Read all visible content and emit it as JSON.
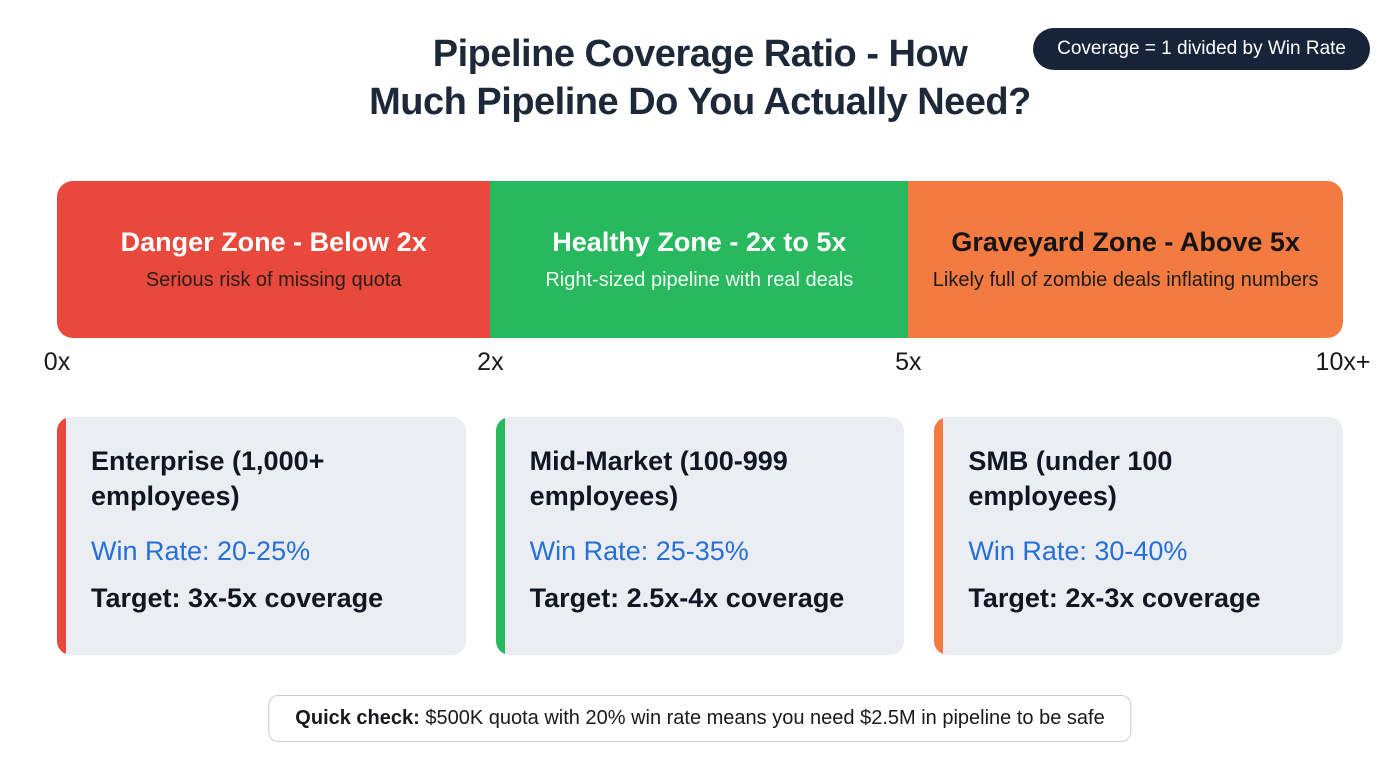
{
  "colors": {
    "title": "#1d2939",
    "badge_bg": "#162338",
    "win_rate_blue": "#2470d6"
  },
  "header": {
    "title_line1": "Pipeline Coverage Ratio - How",
    "title_line2": "Much Pipeline Do You Actually Need?",
    "formula_badge": "Coverage = 1 divided by Win Rate"
  },
  "zones": [
    {
      "title": "Danger Zone - Below 2x",
      "subtitle": "Serious risk of missing quota",
      "color": "#e8493c",
      "title_color": "#ffffff",
      "subtitle_color": "#2a1d1a"
    },
    {
      "title": "Healthy Zone - 2x to 5x",
      "subtitle": "Right-sized pipeline with real deals",
      "color": "#28b95f",
      "title_color": "#ffffff",
      "subtitle_color": "#eefcf3"
    },
    {
      "title": "Graveyard Zone - Above 5x",
      "subtitle": "Likely full of zombie deals inflating numbers",
      "color": "#f37a41",
      "title_color": "#141414",
      "subtitle_color": "#1c1c1c"
    }
  ],
  "axis_labels": [
    "0x",
    "2x",
    "5x",
    "10x+"
  ],
  "cards": [
    {
      "title": "Enterprise (1,000+ employees)",
      "win_rate": "Win Rate: 20-25%",
      "target": "Target: 3x-5x coverage",
      "accent": "#e8493c"
    },
    {
      "title": "Mid-Market (100-999 employees)",
      "win_rate": "Win Rate: 25-35%",
      "target": "Target: 2.5x-4x coverage",
      "accent": "#28b95f"
    },
    {
      "title": "SMB (under 100 employees)",
      "win_rate": "Win Rate: 30-40%",
      "target": "Target: 2x-3x coverage",
      "accent": "#f37a41"
    }
  ],
  "footer": {
    "quick_check_label": "Quick check:",
    "quick_check_text": " $500K quota with 20% win rate means you need $2.5M in pipeline to be safe"
  }
}
